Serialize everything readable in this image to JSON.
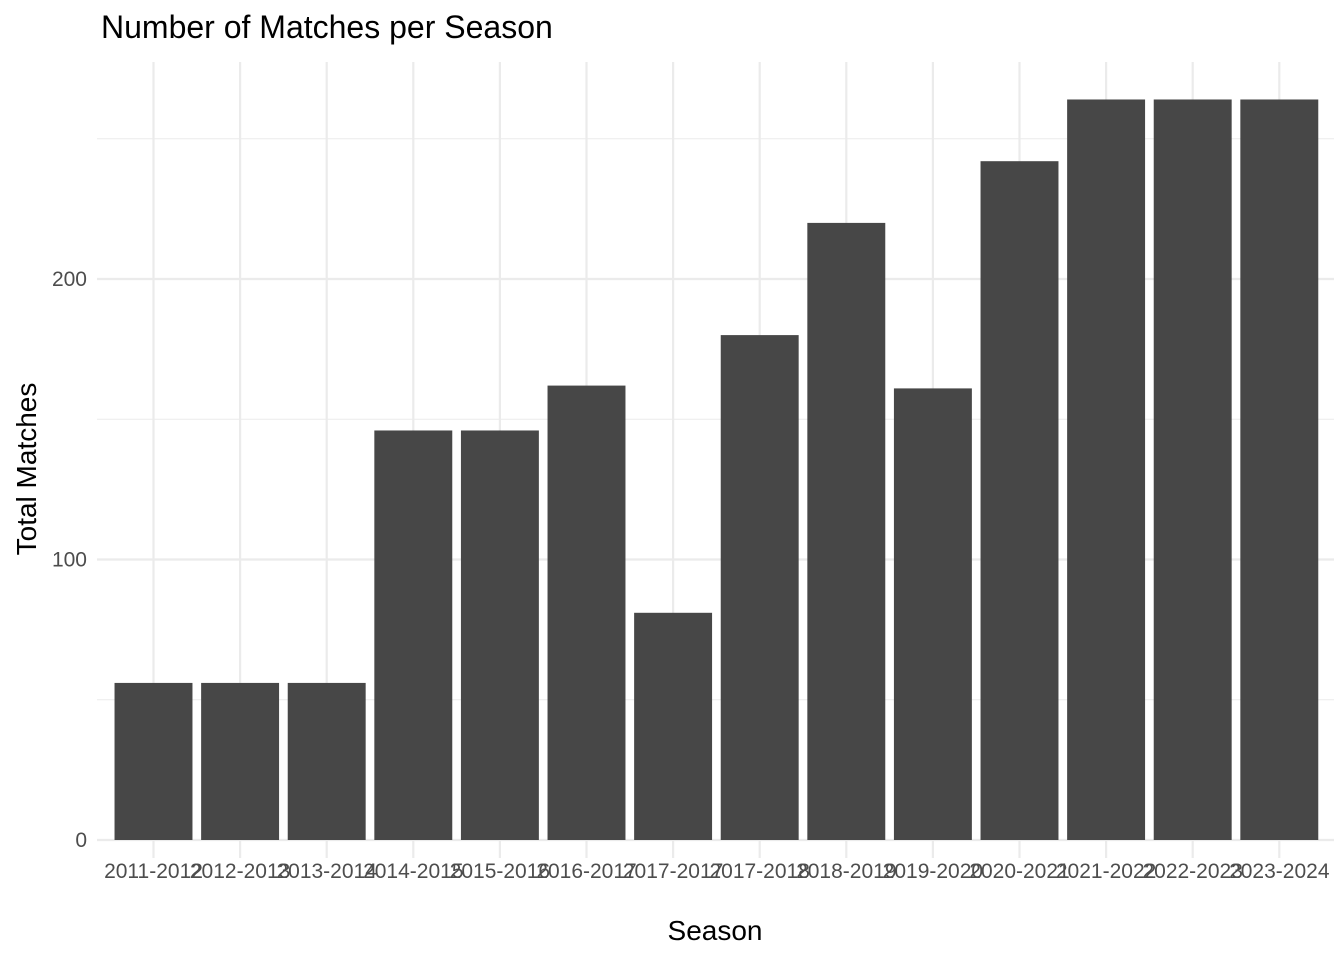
{
  "chart_data": {
    "type": "bar",
    "title": "Number of Matches per Season",
    "xlabel": "Season",
    "ylabel": "Total Matches",
    "categories": [
      "2011-2012",
      "2012-2013",
      "2013-2014",
      "2014-2015",
      "2015-2016",
      "2016-2017",
      "2017-2017",
      "2017-2018",
      "2018-2019",
      "2019-2020",
      "2020-2021",
      "2021-2022",
      "2022-2023",
      "2023-2024"
    ],
    "tick_labels": [
      "2011-2012",
      "2012-2013",
      "2013-2014",
      "2014-2015",
      "2015-2016",
      "2016-2017",
      "2017-2017",
      "2017-2018",
      "2018-2019",
      "2019-2020",
      "2020-2021",
      "2021-2022",
      "2022-2023",
      "2023-2024"
    ],
    "values": [
      56,
      56,
      56,
      146,
      146,
      162,
      81,
      180,
      220,
      161,
      242,
      264,
      264,
      264
    ],
    "ylim": [
      0,
      277
    ],
    "yticks": [
      0,
      100,
      200
    ],
    "bar_color": "#474747",
    "grid": true
  }
}
